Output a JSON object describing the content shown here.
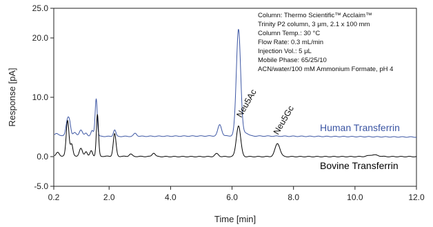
{
  "chart_data": {
    "type": "line",
    "xlabel": "Time [min]",
    "ylabel": "Response [pA]",
    "xlim": [
      0.2,
      12.0
    ],
    "ylim": [
      -5.0,
      25.0
    ],
    "x_ticks": [
      "0.2",
      "2.0",
      "4.0",
      "6.0",
      "8.0",
      "10.0",
      "12.0"
    ],
    "y_ticks": [
      "-5.0",
      "0.0",
      "10.0",
      "20.0",
      "25.0"
    ],
    "grid": false,
    "conditions": [
      "Column: Thermo Scientific™ Acclaim™",
      "Trinity P2 column, 3 μm, 2.1 x 100 mm",
      "Column Temp.: 30 °C",
      "Flow Rate: 0.3 mL/min",
      "Injection Vol.: 5 μL",
      "Mobile Phase: 65/25/10",
      "ACN/water/100 mM Ammonium Formate, pH 4"
    ],
    "annotations": [
      {
        "text": "Neu5Ac",
        "x": 6.3,
        "y": 6.5
      },
      {
        "text": "Neu5Gc",
        "x": 7.5,
        "y": 3.6
      }
    ],
    "series": [
      {
        "name": "Human Transferrin",
        "color": "#3b55a3",
        "baseline": 3.4,
        "drift": [
          [
            0.2,
            3.6
          ],
          [
            2.0,
            3.4
          ],
          [
            6.0,
            3.5
          ],
          [
            12.0,
            3.3
          ]
        ],
        "peaks": [
          {
            "x": 0.28,
            "height": 0.3,
            "width": 0.05
          },
          {
            "x": 0.65,
            "height": 2.6,
            "width": 0.05
          },
          {
            "x": 0.72,
            "height": 1.6,
            "width": 0.04
          },
          {
            "x": 0.88,
            "height": 0.5,
            "width": 0.05
          },
          {
            "x": 1.08,
            "height": 1.0,
            "width": 0.05
          },
          {
            "x": 1.25,
            "height": 0.5,
            "width": 0.04
          },
          {
            "x": 1.45,
            "height": 0.9,
            "width": 0.04
          },
          {
            "x": 1.58,
            "height": 6.3,
            "width": 0.035
          },
          {
            "x": 2.18,
            "height": 1.1,
            "width": 0.04
          },
          {
            "x": 2.85,
            "height": 0.5,
            "width": 0.05
          },
          {
            "x": 5.6,
            "height": 1.9,
            "width": 0.06
          },
          {
            "x": 6.21,
            "height": 18.0,
            "width": 0.07
          },
          {
            "x": 6.45,
            "height": 0.5,
            "width": 0.08
          }
        ]
      },
      {
        "name": "Bovine Transferrin",
        "color": "#000000",
        "baseline": 0.0,
        "drift": [
          [
            0.2,
            0.1
          ],
          [
            4.0,
            0.0
          ],
          [
            12.0,
            0.0
          ]
        ],
        "peaks": [
          {
            "x": 0.33,
            "height": 0.6,
            "width": 0.05
          },
          {
            "x": 0.65,
            "height": 6.0,
            "width": 0.045
          },
          {
            "x": 0.78,
            "height": 2.0,
            "width": 0.04
          },
          {
            "x": 1.08,
            "height": 1.3,
            "width": 0.05
          },
          {
            "x": 1.25,
            "height": 0.8,
            "width": 0.04
          },
          {
            "x": 1.42,
            "height": 0.9,
            "width": 0.04
          },
          {
            "x": 1.62,
            "height": 7.0,
            "width": 0.035
          },
          {
            "x": 2.18,
            "height": 3.8,
            "width": 0.045
          },
          {
            "x": 2.7,
            "height": 0.4,
            "width": 0.05
          },
          {
            "x": 3.45,
            "height": 0.6,
            "width": 0.05
          },
          {
            "x": 5.5,
            "height": 0.5,
            "width": 0.06
          },
          {
            "x": 6.21,
            "height": 5.2,
            "width": 0.07
          },
          {
            "x": 7.48,
            "height": 2.2,
            "width": 0.08
          },
          {
            "x": 10.6,
            "height": 0.3,
            "width": 0.15
          }
        ]
      }
    ]
  }
}
